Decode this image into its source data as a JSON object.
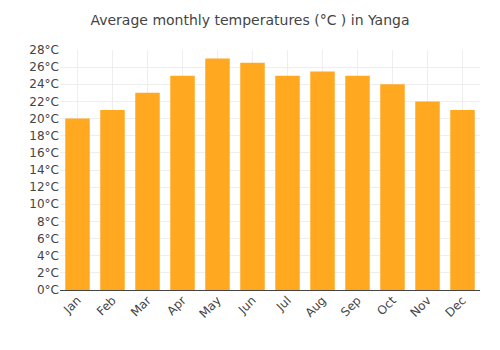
{
  "chart_data": {
    "type": "bar",
    "title": "Average monthly temperatures (°C ) in Yanga",
    "categories": [
      "Jan",
      "Feb",
      "Mar",
      "Apr",
      "May",
      "Jun",
      "Jul",
      "Aug",
      "Sep",
      "Oct",
      "Nov",
      "Dec"
    ],
    "values": [
      20,
      21,
      23,
      25,
      27,
      26.5,
      25,
      25.5,
      25,
      24,
      22,
      21
    ],
    "color": "#FFA820",
    "ylim": [
      0,
      28
    ],
    "yticks": [
      {
        "value": 0,
        "label": "0°C"
      },
      {
        "value": 2,
        "label": "2°C"
      },
      {
        "value": 4,
        "label": "4°C"
      },
      {
        "value": 6,
        "label": "6°C"
      },
      {
        "value": 8,
        "label": "8°C"
      },
      {
        "value": 10,
        "label": "10°C"
      },
      {
        "value": 12,
        "label": "12°C"
      },
      {
        "value": 14,
        "label": "14°C"
      },
      {
        "value": 16,
        "label": "16°C"
      },
      {
        "value": 18,
        "label": "18°C"
      },
      {
        "value": 20,
        "label": "20°C"
      },
      {
        "value": 22,
        "label": "22°C"
      },
      {
        "value": 24,
        "label": "24°C"
      },
      {
        "value": 26,
        "label": "26°C"
      },
      {
        "value": 28,
        "label": "28°C"
      }
    ],
    "grid": true
  }
}
